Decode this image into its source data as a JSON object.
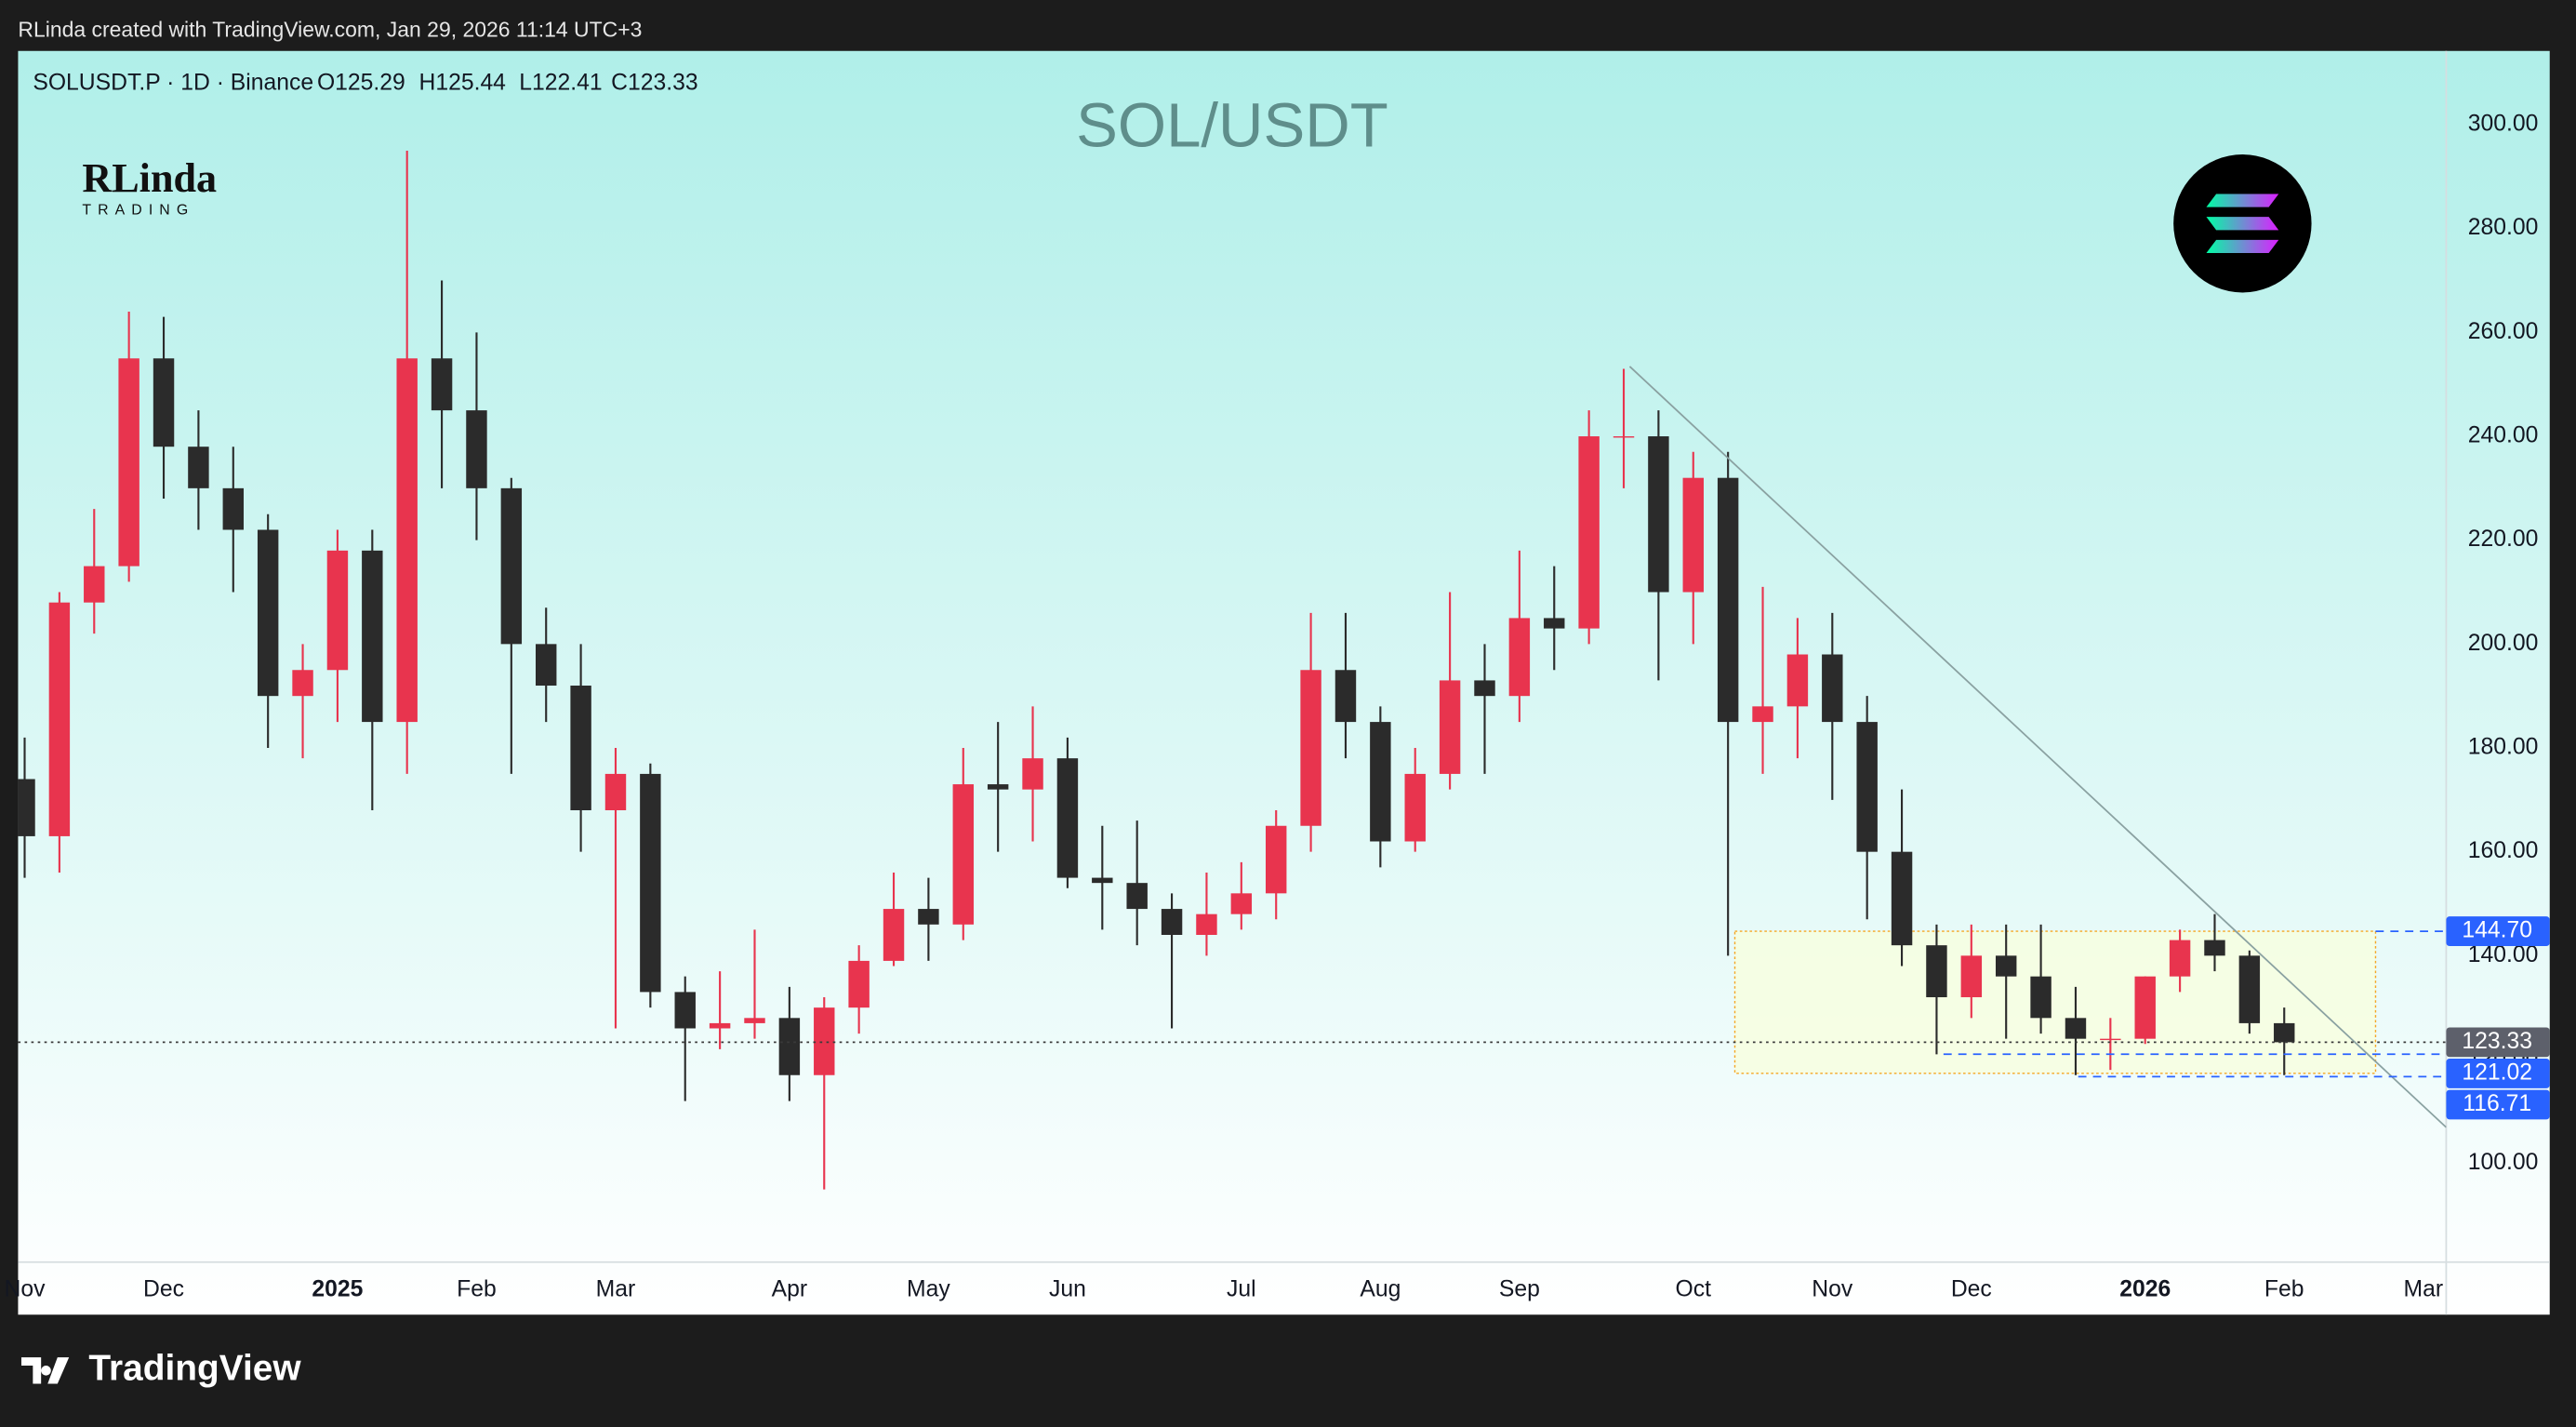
{
  "header": {
    "attribution": "RLinda created with TradingView.com, Jan 29, 2026 11:14 UTC+3"
  },
  "footer": {
    "brand": "TradingView"
  },
  "logo": {
    "name": "RLinda",
    "tagline": "TRADING"
  },
  "chart_data": {
    "type": "candlestick",
    "title": "SOL/USDT",
    "symbol": "SOLUSDT.P · 1D · Binance",
    "ohlc": [
      {
        "value": 125.29,
        "label": "O125.29"
      },
      {
        "value": 125.44,
        "label": "H125.44"
      },
      {
        "value": 122.41,
        "label": "L122.41"
      },
      {
        "value": 123.33,
        "label": "C123.33"
      }
    ],
    "up_color": "#e8344e",
    "down_color": "#2b2b2b",
    "categories": [
      "Nov",
      null,
      null,
      null,
      "Dec",
      null,
      null,
      null,
      null,
      "2025",
      null,
      null,
      null,
      "Feb",
      null,
      null,
      null,
      "Mar",
      null,
      null,
      null,
      null,
      "Apr",
      null,
      null,
      null,
      "May",
      null,
      null,
      null,
      "Jun",
      null,
      null,
      null,
      null,
      "Jul",
      null,
      null,
      null,
      "Aug",
      null,
      null,
      null,
      "Sep",
      null,
      null,
      null,
      null,
      "Oct",
      null,
      null,
      null,
      "Nov",
      null,
      null,
      null,
      "Dec",
      null,
      null,
      null,
      null,
      "2026",
      null,
      null,
      null,
      "Feb",
      null,
      null,
      null,
      "Mar"
    ],
    "open": [
      174,
      163,
      208,
      215,
      255,
      238,
      230,
      222,
      190,
      195,
      218,
      185,
      255,
      245,
      230,
      200,
      192,
      168,
      175,
      133,
      126,
      127,
      128,
      117,
      130,
      139,
      149,
      146,
      173,
      172,
      178,
      155,
      154,
      149,
      144,
      148,
      152,
      165,
      195,
      185,
      162,
      175,
      193,
      190,
      205,
      203,
      240,
      240,
      210,
      232,
      185,
      188,
      198,
      185,
      160,
      142,
      132,
      140,
      136,
      128,
      124,
      124,
      136,
      143,
      140,
      127,
      null,
      null,
      null,
      null
    ],
    "high": [
      182,
      210,
      226,
      264,
      263,
      245,
      238,
      225,
      200,
      222,
      222,
      295,
      270,
      260,
      232,
      207,
      200,
      180,
      177,
      136,
      137,
      145,
      134,
      132,
      142,
      156,
      155,
      180,
      185,
      188,
      182,
      165,
      166,
      152,
      156,
      158,
      168,
      206,
      206,
      188,
      180,
      210,
      200,
      218,
      215,
      245,
      253,
      245,
      237,
      237,
      211,
      205,
      206,
      190,
      172,
      146,
      146,
      146,
      146,
      134,
      128,
      136,
      145,
      148,
      141,
      130,
      null,
      null,
      null,
      null
    ],
    "low": [
      155,
      156,
      202,
      212,
      228,
      222,
      210,
      180,
      178,
      185,
      168,
      175,
      230,
      220,
      175,
      185,
      160,
      126,
      130,
      112,
      122,
      124,
      112,
      95,
      125,
      138,
      139,
      143,
      160,
      162,
      153,
      145,
      142,
      126,
      140,
      145,
      147,
      160,
      178,
      157,
      160,
      172,
      175,
      185,
      195,
      200,
      230,
      193,
      200,
      140,
      175,
      178,
      170,
      147,
      138,
      121,
      128,
      124,
      125,
      117,
      118,
      123,
      133,
      137,
      125,
      117,
      null,
      null,
      null,
      null
    ],
    "close": [
      163,
      208,
      215,
      255,
      238,
      230,
      222,
      190,
      195,
      218,
      185,
      255,
      245,
      230,
      200,
      192,
      168,
      175,
      133,
      126,
      127,
      128,
      117,
      130,
      139,
      149,
      146,
      173,
      172,
      178,
      155,
      154,
      149,
      144,
      148,
      152,
      165,
      195,
      185,
      162,
      175,
      193,
      190,
      205,
      203,
      240,
      240,
      210,
      232,
      185,
      188,
      198,
      185,
      160,
      142,
      132,
      140,
      136,
      128,
      124,
      124,
      136,
      143,
      140,
      127,
      123.33,
      null,
      null,
      null,
      null
    ],
    "ylim": [
      81,
      314.2
    ],
    "yticks": [
      {
        "value": 100,
        "label": "100.00"
      },
      {
        "value": 120,
        "label": "120.00"
      },
      {
        "value": 140,
        "label": "140.00"
      },
      {
        "value": 160,
        "label": "160.00"
      },
      {
        "value": 180,
        "label": "180.00"
      },
      {
        "value": 200,
        "label": "200.00"
      },
      {
        "value": 220,
        "label": "220.00"
      },
      {
        "value": 240,
        "label": "240.00"
      },
      {
        "value": 260,
        "label": "260.00"
      },
      {
        "value": 280,
        "label": "280.00"
      },
      {
        "value": 300,
        "label": "300.00"
      }
    ],
    "price_labels": [
      {
        "value": 144.7,
        "label": "144.70",
        "color": "#2962ff"
      },
      {
        "value": 123.33,
        "label": "123.33",
        "color": "#5d606b"
      },
      {
        "value": 121.02,
        "label": "121.02",
        "color": "#2962ff"
      },
      {
        "value": 116.71,
        "label": "116.71",
        "color": "#2962ff"
      }
    ],
    "grid": false
  }
}
